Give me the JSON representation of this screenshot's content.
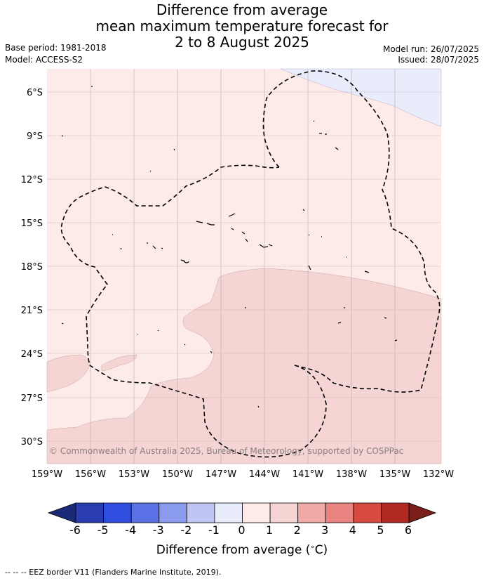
{
  "header": {
    "title_lines": [
      "Difference from average",
      "mean maximum temperature forecast for",
      "2 to 8 August 2025"
    ],
    "base_period": "Base period: 1981-2018",
    "model": "Model: ACCESS-S2",
    "model_run": "Model run: 26/07/2025",
    "issued": "Issued: 28/07/2025"
  },
  "map": {
    "lat_labels": [
      "6°S",
      "9°S",
      "12°S",
      "15°S",
      "18°S",
      "21°S",
      "24°S",
      "27°S",
      "30°S"
    ],
    "lon_labels": [
      "159°W",
      "156°W",
      "153°W",
      "150°W",
      "147°W",
      "144°W",
      "141°W",
      "138°W",
      "135°W",
      "132°W"
    ],
    "copyright": "© Commonwealth of Australia 2025, Bureau of Meteorology, supported by COSPPac",
    "fill_colors": {
      "below_0": "#e8ecfb",
      "0_to_1": "#fcebe9",
      "1_to_2": "#f5d5d3"
    }
  },
  "colorbar": {
    "ticks": [
      "-6",
      "-5",
      "-4",
      "-3",
      "-2",
      "-1",
      "0",
      "1",
      "2",
      "3",
      "4",
      "5",
      "6"
    ],
    "colors": [
      "#1b2a78",
      "#2a3db0",
      "#2f4ee0",
      "#5a72e6",
      "#8a9aec",
      "#bfc6f3",
      "#e8ecfb",
      "#fcebe9",
      "#f5d5d3",
      "#efaaa7",
      "#e88380",
      "#d84a40",
      "#b02a22",
      "#7a1e1a"
    ],
    "label": "Difference from average ($^{\\circ}$C)"
  },
  "footnote": "-- -- -- EEZ border V11 (Flanders Marine Institute, 2019)."
}
